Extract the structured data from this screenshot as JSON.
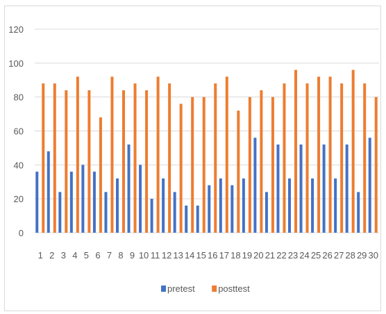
{
  "chart_data": {
    "type": "bar",
    "categories": [
      "1",
      "2",
      "3",
      "4",
      "5",
      "6",
      "7",
      "8",
      "9",
      "10",
      "11",
      "12",
      "13",
      "14",
      "15",
      "16",
      "17",
      "18",
      "19",
      "20",
      "21",
      "22",
      "23",
      "24",
      "25",
      "26",
      "27",
      "28",
      "29",
      "30"
    ],
    "series": [
      {
        "name": "pretest",
        "color": "#4472c4",
        "values": [
          36,
          48,
          24,
          36,
          40,
          36,
          24,
          32,
          52,
          40,
          20,
          32,
          24,
          16,
          16,
          28,
          32,
          28,
          32,
          56,
          24,
          52,
          32,
          52,
          32,
          52,
          32,
          52,
          24,
          56
        ]
      },
      {
        "name": "posttest",
        "color": "#ed7d31",
        "values": [
          88,
          88,
          84,
          92,
          84,
          68,
          92,
          84,
          88,
          84,
          92,
          88,
          76,
          80,
          80,
          88,
          92,
          72,
          80,
          84,
          80,
          88,
          96,
          88,
          92,
          92,
          88,
          96,
          88,
          80
        ]
      }
    ],
    "ylim": [
      0,
      120
    ],
    "yticks": [
      0,
      20,
      40,
      60,
      80,
      100,
      120
    ],
    "grid": true,
    "legend": "bottom",
    "legend_items": [
      {
        "name": "pretest",
        "color": "#4472c4"
      },
      {
        "name": "posttest",
        "color": "#ed7d31"
      }
    ]
  }
}
